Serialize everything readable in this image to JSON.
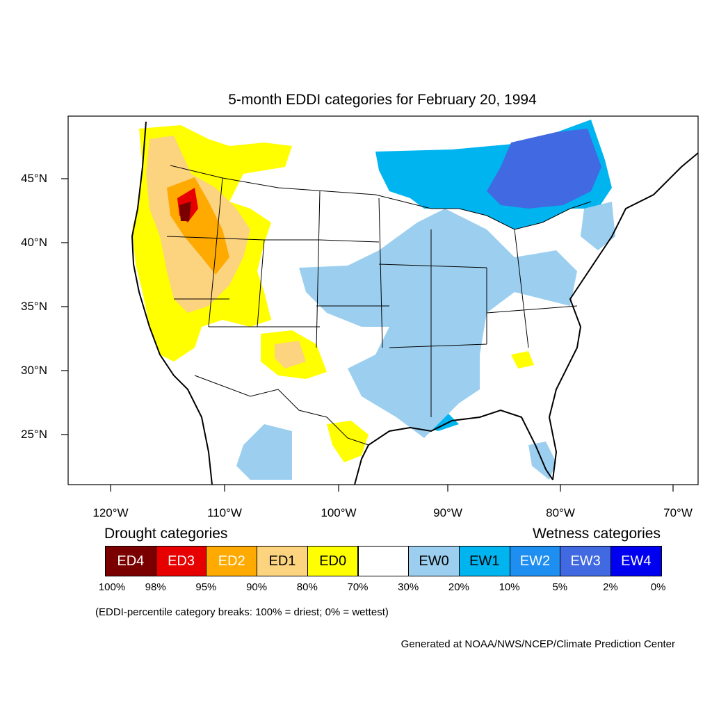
{
  "title": "5-month EDDI categories for February 20, 1994",
  "latitude_labels": [
    "45°N",
    "40°N",
    "35°N",
    "30°N",
    "25°N"
  ],
  "longitude_labels": [
    "120°W",
    "110°W",
    "100°W",
    "90°W",
    "80°W",
    "70°W"
  ],
  "legend": {
    "drought_title": "Drought categories",
    "wetness_title": "Wetness categories",
    "categories": [
      {
        "label": "ED4",
        "color": "#7a0000",
        "text_color": "#ffffff"
      },
      {
        "label": "ED3",
        "color": "#e60000",
        "text_color": "#ffffff"
      },
      {
        "label": "ED2",
        "color": "#ffaa00",
        "text_color": "#ffffff"
      },
      {
        "label": "ED1",
        "color": "#fcd37f",
        "text_color": "#000000"
      },
      {
        "label": "ED0",
        "color": "#ffff00",
        "text_color": "#000000"
      },
      {
        "label": "",
        "color": "#ffffff",
        "text_color": "#000000"
      },
      {
        "label": "EW0",
        "color": "#9ccfef",
        "text_color": "#000000"
      },
      {
        "label": "EW1",
        "color": "#00b4f0",
        "text_color": "#000000"
      },
      {
        "label": "EW2",
        "color": "#1e8ff0",
        "text_color": "#ffffff"
      },
      {
        "label": "EW3",
        "color": "#4169e1",
        "text_color": "#ffffff"
      },
      {
        "label": "EW4",
        "color": "#0000f0",
        "text_color": "#ffffff"
      }
    ],
    "percentiles": [
      "100%",
      "98%",
      "95%",
      "90%",
      "80%",
      "70%",
      "30%",
      "20%",
      "10%",
      "5%",
      "2%",
      "0%"
    ]
  },
  "note": "(EDDI-percentile category breaks: 100% = driest; 0% = wettest)",
  "credit": "Generated at NOAA/NWS/NCEP/Climate Prediction Center"
}
